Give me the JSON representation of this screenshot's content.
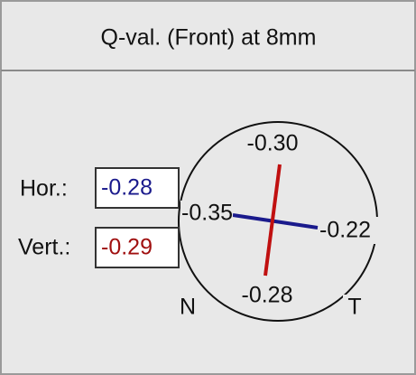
{
  "header": {
    "title": "Q-val. (Front) at 8mm"
  },
  "fields": [
    {
      "label": "Hor.:",
      "value": "-0.28"
    },
    {
      "label": "Vert.:",
      "value": "-0.29"
    }
  ],
  "diagram": {
    "top": "-0.30",
    "left": "-0.35",
    "right": "-0.22",
    "bottom": "-0.28",
    "nasal": "N",
    "temporal": "T"
  }
}
